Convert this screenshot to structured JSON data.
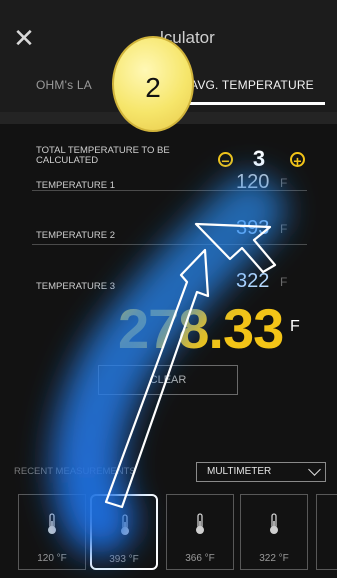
{
  "header": {
    "close_icon": "close-icon",
    "title": "lculator",
    "tabs": [
      {
        "label": "OHM's LA"
      },
      {
        "label": "AVG. TEMPERATURE"
      }
    ]
  },
  "calculator": {
    "total_label": "TOTAL TEMPERATURE TO BE CALCULATED",
    "stepper_value": "3",
    "rows": [
      {
        "label": "TEMPERATURE 1",
        "value": "120",
        "unit": "F"
      },
      {
        "label": "TEMPERATURE 2",
        "value": "393",
        "unit": "F"
      },
      {
        "label": "TEMPERATURE 3",
        "value": "322",
        "unit": "F"
      }
    ],
    "result": "278.33",
    "result_unit": "F",
    "clear_label": "CLEAR"
  },
  "recent": {
    "label": "RECENT MEASUREMENTS",
    "dropdown": "MULTIMETER",
    "tiles": [
      {
        "value": "120",
        "unit": "°F"
      },
      {
        "value": "393",
        "unit": "°F"
      },
      {
        "value": "366",
        "unit": "°F"
      },
      {
        "value": "322",
        "unit": "°F"
      }
    ]
  },
  "overlay": {
    "callout_number": "2"
  },
  "colors": {
    "accent": "#f3c417",
    "background": "#121212",
    "highlight_glow": "#1f7fe0"
  }
}
